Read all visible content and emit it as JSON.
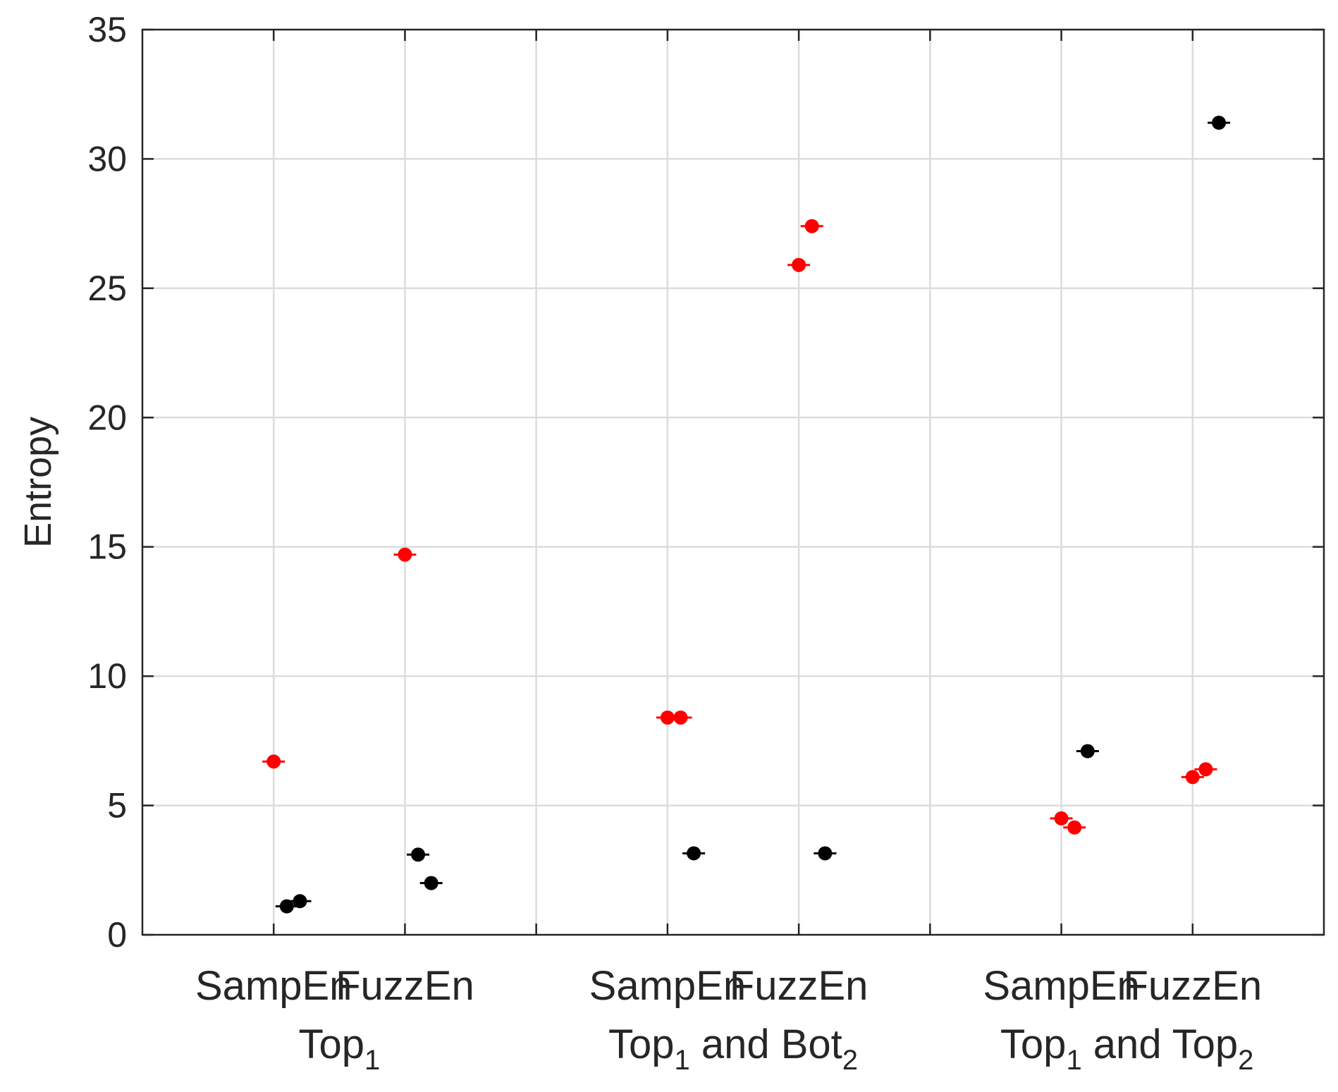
{
  "chart_data": {
    "type": "scatter",
    "ylabel": "Entropy",
    "ylim": [
      0,
      35
    ],
    "yticks": [
      "0",
      "5",
      "10",
      "15",
      "20",
      "25",
      "30",
      "35"
    ],
    "xtick_labels": [
      "SampEn",
      "FuzzEn",
      "SampEn",
      "FuzzEn",
      "SampEn",
      "FuzzEn"
    ],
    "groups": [
      {
        "base": "Top",
        "sub1": "1",
        "mid": "",
        "sub2": ""
      },
      {
        "base": "Top",
        "sub1": "1",
        "mid": " and Bot",
        "sub2": "2"
      },
      {
        "base": "Top",
        "sub1": "1",
        "mid": " and Top",
        "sub2": "2"
      }
    ],
    "grid": true,
    "colors": {
      "red": "#ff0000",
      "black": "#000000",
      "grid": "#dcdcdc",
      "axis": "#262626"
    },
    "series": [
      {
        "color": "red",
        "points": [
          {
            "x": 1.0,
            "y": 6.7
          },
          {
            "x": 2.0,
            "y": 14.7
          },
          {
            "x": 4.0,
            "y": 8.4
          },
          {
            "x": 4.1,
            "y": 8.4
          },
          {
            "x": 5.0,
            "y": 25.9
          },
          {
            "x": 5.1,
            "y": 27.4
          },
          {
            "x": 7.0,
            "y": 4.5
          },
          {
            "x": 7.1,
            "y": 4.15
          },
          {
            "x": 8.0,
            "y": 6.1
          },
          {
            "x": 8.1,
            "y": 6.4
          }
        ]
      },
      {
        "color": "black",
        "points": [
          {
            "x": 1.1,
            "y": 1.1
          },
          {
            "x": 1.2,
            "y": 1.3
          },
          {
            "x": 2.1,
            "y": 3.1
          },
          {
            "x": 2.2,
            "y": 2.0
          },
          {
            "x": 4.2,
            "y": 3.15
          },
          {
            "x": 5.2,
            "y": 3.15
          },
          {
            "x": 7.2,
            "y": 7.1
          },
          {
            "x": 8.2,
            "y": 31.4
          }
        ]
      }
    ]
  }
}
